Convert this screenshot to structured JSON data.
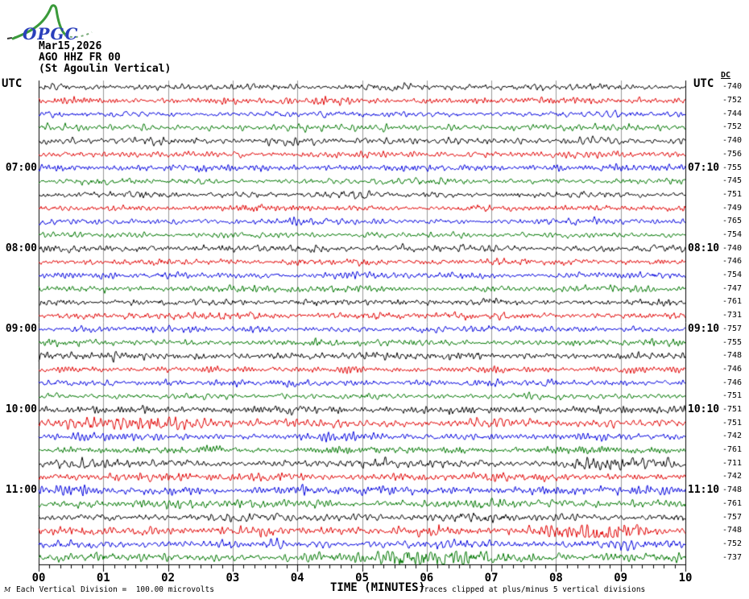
{
  "logo": {
    "text": "OPGC"
  },
  "header": {
    "date": "Mar15,2026",
    "station": "AGO HHZ FR 00",
    "description": "(St Agoulin Vertical)"
  },
  "left_axis_title": "UTC",
  "right_axis_title": "UTC",
  "dc_header": "DC",
  "axis": {
    "label": "TIME (MINUTES)"
  },
  "footer": {
    "marker": "M",
    "left": "Each Vertical Division =  100.00 microvolts",
    "right": "Traces clipped at plus/minus 5 vertical divisions"
  },
  "colors": {
    "black": "#000000",
    "red": "#e00000",
    "blue": "#0000dd",
    "green": "#007700",
    "grid": "#999999",
    "border": "#000000"
  },
  "chart_data": {
    "type": "line",
    "kind": "helicorder-seismogram",
    "title": "AGO HHZ FR 00 (St Agoulin Vertical) Mar15,2026",
    "xlabel": "TIME (MINUTES)",
    "x_ticks": [
      "00",
      "01",
      "02",
      "03",
      "04",
      "05",
      "06",
      "07",
      "08",
      "09",
      "10"
    ],
    "minutes_per_line": 10,
    "minor_tick_seconds": 10,
    "vertical_division_microvolts": 100.0,
    "clip_divisions": 5,
    "color_cycle": [
      "black",
      "red",
      "blue",
      "green"
    ],
    "rows": [
      {
        "start": "06:00",
        "end": "06:10",
        "dc": -740,
        "color": "black",
        "amp": 1.0
      },
      {
        "start": "06:10",
        "end": "06:20",
        "dc": -752,
        "color": "red",
        "amp": 1.0
      },
      {
        "start": "06:20",
        "end": "06:30",
        "dc": -744,
        "color": "blue",
        "amp": 1.05
      },
      {
        "start": "06:30",
        "end": "06:40",
        "dc": -752,
        "color": "green",
        "amp": 0.95
      },
      {
        "start": "06:40",
        "end": "06:50",
        "dc": -740,
        "color": "black",
        "amp": 1.1
      },
      {
        "start": "06:50",
        "end": "07:00",
        "dc": -756,
        "color": "red",
        "amp": 1.05
      },
      {
        "start": "07:00",
        "end": "07:10",
        "dc": -755,
        "color": "blue",
        "amp": 1.0,
        "label_left": "07:00",
        "label_right": "07:10"
      },
      {
        "start": "07:10",
        "end": "07:20",
        "dc": -745,
        "color": "green",
        "amp": 0.95
      },
      {
        "start": "07:20",
        "end": "07:30",
        "dc": -751,
        "color": "black",
        "amp": 1.0
      },
      {
        "start": "07:30",
        "end": "07:40",
        "dc": -749,
        "color": "red",
        "amp": 1.0
      },
      {
        "start": "07:40",
        "end": "07:50",
        "dc": -765,
        "color": "blue",
        "amp": 1.0
      },
      {
        "start": "07:50",
        "end": "08:00",
        "dc": -754,
        "color": "green",
        "amp": 0.95
      },
      {
        "start": "08:00",
        "end": "08:10",
        "dc": -740,
        "color": "black",
        "amp": 1.05,
        "label_left": "08:00",
        "label_right": "08:10"
      },
      {
        "start": "08:10",
        "end": "08:20",
        "dc": -746,
        "color": "red",
        "amp": 1.0
      },
      {
        "start": "08:20",
        "end": "08:30",
        "dc": -754,
        "color": "blue",
        "amp": 1.0
      },
      {
        "start": "08:30",
        "end": "08:40",
        "dc": -747,
        "color": "green",
        "amp": 1.0
      },
      {
        "start": "08:40",
        "end": "08:50",
        "dc": -761,
        "color": "black",
        "amp": 1.1
      },
      {
        "start": "08:50",
        "end": "09:00",
        "dc": -731,
        "color": "red",
        "amp": 1.05
      },
      {
        "start": "09:00",
        "end": "09:10",
        "dc": -757,
        "color": "blue",
        "amp": 1.0,
        "label_left": "09:00",
        "label_right": "09:10"
      },
      {
        "start": "09:10",
        "end": "09:20",
        "dc": -755,
        "color": "green",
        "amp": 1.0
      },
      {
        "start": "09:20",
        "end": "09:30",
        "dc": -748,
        "color": "black",
        "amp": 1.1
      },
      {
        "start": "09:30",
        "end": "09:40",
        "dc": -746,
        "color": "red",
        "amp": 1.0
      },
      {
        "start": "09:40",
        "end": "09:50",
        "dc": -746,
        "color": "blue",
        "amp": 1.0
      },
      {
        "start": "09:50",
        "end": "10:00",
        "dc": -751,
        "color": "green",
        "amp": 1.0
      },
      {
        "start": "10:00",
        "end": "10:10",
        "dc": -751,
        "color": "black",
        "amp": 1.1,
        "label_left": "10:00",
        "label_right": "10:10"
      },
      {
        "start": "10:10",
        "end": "10:20",
        "dc": -751,
        "color": "red",
        "amp": 1.15,
        "burst": {
          "t": 1.8,
          "w": 0.5,
          "a": 1.2
        }
      },
      {
        "start": "10:20",
        "end": "10:30",
        "dc": -742,
        "color": "blue",
        "amp": 1.1
      },
      {
        "start": "10:30",
        "end": "10:40",
        "dc": -761,
        "color": "green",
        "amp": 1.15
      },
      {
        "start": "10:40",
        "end": "10:50",
        "dc": -711,
        "color": "black",
        "amp": 1.25,
        "burst": {
          "t": 8.8,
          "w": 0.3,
          "a": 1.5
        }
      },
      {
        "start": "10:50",
        "end": "11:00",
        "dc": -742,
        "color": "red",
        "amp": 1.2
      },
      {
        "start": "11:00",
        "end": "11:10",
        "dc": -748,
        "color": "blue",
        "amp": 1.3,
        "label_left": "11:00",
        "label_right": "11:10"
      },
      {
        "start": "11:10",
        "end": "11:20",
        "dc": -761,
        "color": "green",
        "amp": 1.4
      },
      {
        "start": "11:20",
        "end": "11:30",
        "dc": -757,
        "color": "black",
        "amp": 1.45
      },
      {
        "start": "11:30",
        "end": "11:40",
        "dc": -748,
        "color": "red",
        "amp": 1.4,
        "burst": {
          "t": 8.5,
          "w": 0.45,
          "a": 2.2
        }
      },
      {
        "start": "11:40",
        "end": "11:50",
        "dc": -752,
        "color": "blue",
        "amp": 1.35
      },
      {
        "start": "11:50",
        "end": "12:00",
        "dc": -737,
        "color": "green",
        "amp": 1.5,
        "burst": {
          "t": 6.2,
          "w": 0.8,
          "a": 1.2
        }
      }
    ]
  }
}
